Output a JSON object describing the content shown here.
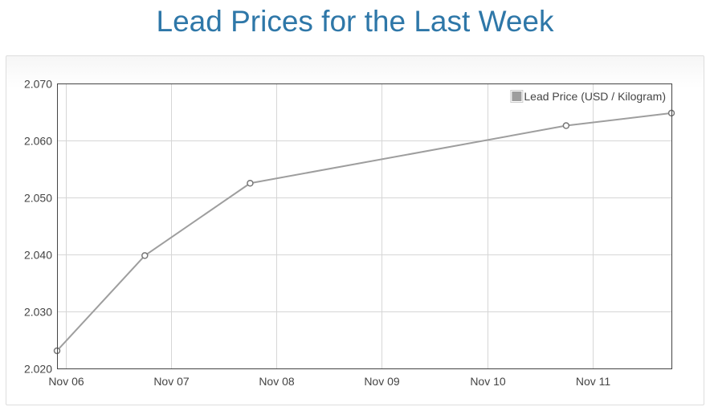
{
  "page": {
    "title": "Lead Prices for the Last Week"
  },
  "chart_data": {
    "type": "line",
    "series": [
      {
        "name": "Lead Price (USD / Kilogram)",
        "color": "#9e9e9e",
        "points": [
          {
            "x": "2023-11-05 22:00",
            "y": 2.0231
          },
          {
            "x": "2023-11-06 18:00",
            "y": 2.0398
          },
          {
            "x": "2023-11-07 18:00",
            "y": 2.0525
          },
          {
            "x": "2023-11-10 18:00",
            "y": 2.0626
          },
          {
            "x": "2023-11-11 18:00",
            "y": 2.0648
          }
        ]
      }
    ],
    "x_ticks": [
      {
        "x": "2023-11-06 00:00",
        "label": "Nov 06"
      },
      {
        "x": "2023-11-07 00:00",
        "label": "Nov 07"
      },
      {
        "x": "2023-11-08 00:00",
        "label": "Nov 08"
      },
      {
        "x": "2023-11-09 00:00",
        "label": "Nov 09"
      },
      {
        "x": "2023-11-10 00:00",
        "label": "Nov 10"
      },
      {
        "x": "2023-11-11 00:00",
        "label": "Nov 11"
      }
    ],
    "xlim": [
      "2023-11-05 22:00",
      "2023-11-11 18:00"
    ],
    "y_ticks": [
      "2.020",
      "2.030",
      "2.040",
      "2.050",
      "2.060",
      "2.070"
    ],
    "ylim": [
      2.02,
      2.07
    ],
    "grid": true,
    "legend_position": "top-right"
  }
}
